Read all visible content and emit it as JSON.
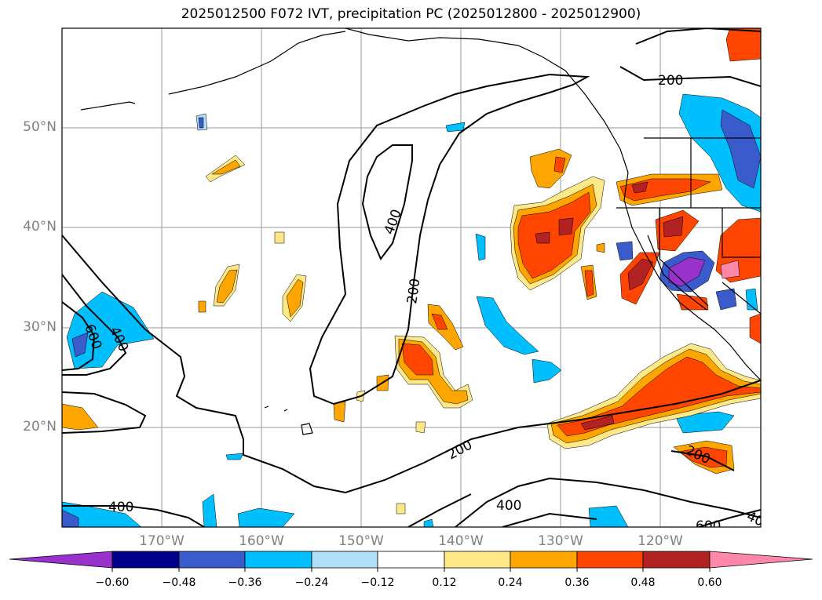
{
  "title": "2025012500 F072 IVT, precipitation PC (2025012800 - 2025012900)",
  "map": {
    "lat_labels": [
      "50°N",
      "40°N",
      "30°N",
      "20°N"
    ],
    "lon_labels": [
      "170°W",
      "160°W",
      "150°W",
      "140°W",
      "130°W",
      "120°W"
    ],
    "contour_labels": [
      "200",
      "400",
      "200",
      "400",
      "600",
      "400",
      "200",
      "400",
      "200",
      "600",
      "40"
    ],
    "ivt_contour_levels": [
      200,
      400,
      600
    ]
  },
  "colorbar": {
    "ticks": [
      "−0.60",
      "−0.48",
      "−0.36",
      "−0.24",
      "−0.12",
      "0.12",
      "0.24",
      "0.36",
      "0.48",
      "0.60"
    ],
    "colors": [
      "#9932cc",
      "#00008b",
      "#3a5bcc",
      "#00bfff",
      "#b0e0f8",
      "#ffffff",
      "#ffe887",
      "#ffa500",
      "#ff4500",
      "#b22222",
      "#ff88aa"
    ],
    "extend": "both"
  }
}
